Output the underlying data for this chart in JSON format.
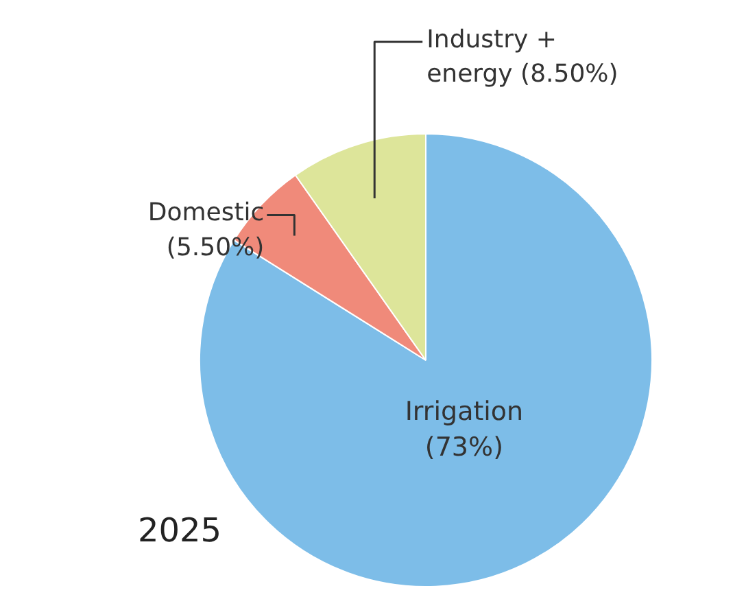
{
  "chart_data": {
    "type": "pie",
    "title": "2025",
    "categories": [
      "Irrigation",
      "Domestic",
      "Industry + energy"
    ],
    "values": [
      73,
      5.5,
      8.5
    ],
    "value_labels": [
      "(73%)",
      "(5.50%)",
      "(8.50%)"
    ],
    "colors": [
      "#7dbde8",
      "#f08a7a",
      "#dde59a"
    ]
  }
}
